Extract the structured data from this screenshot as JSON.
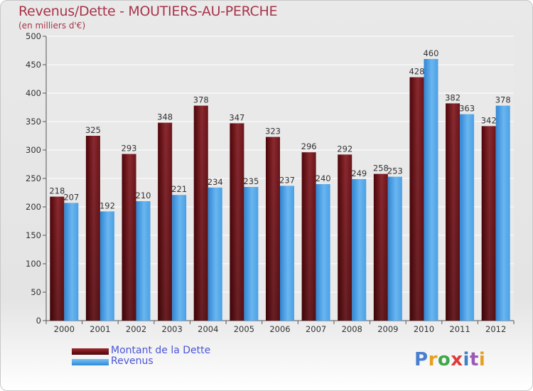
{
  "title": "Revenus/Dette - MOUTIERS-AU-PERCHE",
  "subtitle": "(en milliers d'€)",
  "logo": "Proxiti",
  "colors": {
    "dette": "#6b0f14",
    "revenus": "#4aa3e8",
    "title": "#a8344a",
    "legend_text": "#4a55d6"
  },
  "chart_data": {
    "type": "bar",
    "title": "Revenus/Dette - MOUTIERS-AU-PERCHE",
    "ylabel": "(en milliers d'€)",
    "xlabel": "",
    "ylim": [
      0,
      500
    ],
    "yticks": [
      0,
      50,
      100,
      150,
      200,
      250,
      300,
      350,
      400,
      450,
      500
    ],
    "grid": true,
    "legend": "bottom-left",
    "categories": [
      "2000",
      "2001",
      "2002",
      "2003",
      "2004",
      "2005",
      "2006",
      "2007",
      "2008",
      "2009",
      "2010",
      "2011",
      "2012"
    ],
    "series": [
      {
        "name": "Montant de la Dette",
        "values": [
          218,
          325,
          293,
          348,
          378,
          347,
          323,
          296,
          292,
          258,
          428,
          382,
          342
        ]
      },
      {
        "name": "Revenus",
        "values": [
          207,
          192,
          210,
          221,
          234,
          235,
          237,
          240,
          249,
          253,
          460,
          363,
          378
        ]
      }
    ]
  }
}
